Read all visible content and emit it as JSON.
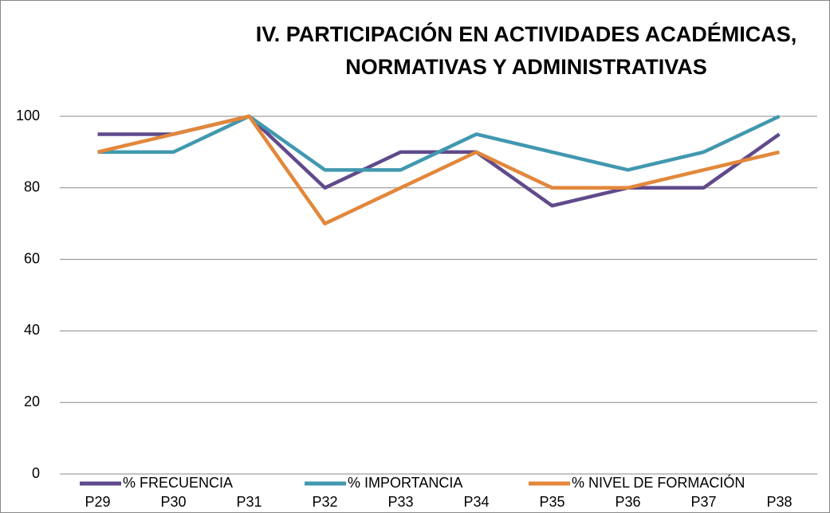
{
  "chart_data": {
    "type": "line",
    "title": [
      "IV. PARTICIPACIÓN EN ACTIVIDADES ACADÉMICAS,",
      "NORMATIVAS Y ADMINISTRATIVAS"
    ],
    "categories": [
      "P29",
      "P30",
      "P31",
      "P32",
      "P33",
      "P34",
      "P35",
      "P36",
      "P37",
      "P38"
    ],
    "series": [
      {
        "name": "% FRECUENCIA",
        "color": "#604a8b",
        "values": [
          95,
          95,
          100,
          80,
          90,
          90,
          75,
          80,
          80,
          95
        ]
      },
      {
        "name": "% IMPORTANCIA",
        "color": "#4198af",
        "values": [
          90,
          90,
          100,
          85,
          85,
          95,
          90,
          85,
          90,
          100
        ]
      },
      {
        "name": "% NIVEL DE FORMACIÓN",
        "color": "#e2873b",
        "values": [
          90,
          95,
          100,
          70,
          80,
          90,
          80,
          80,
          85,
          90
        ]
      }
    ],
    "ylim": [
      0,
      100
    ],
    "yticks": [
      0,
      20,
      40,
      60,
      80,
      100
    ],
    "grid": true,
    "legend": "bottom"
  }
}
